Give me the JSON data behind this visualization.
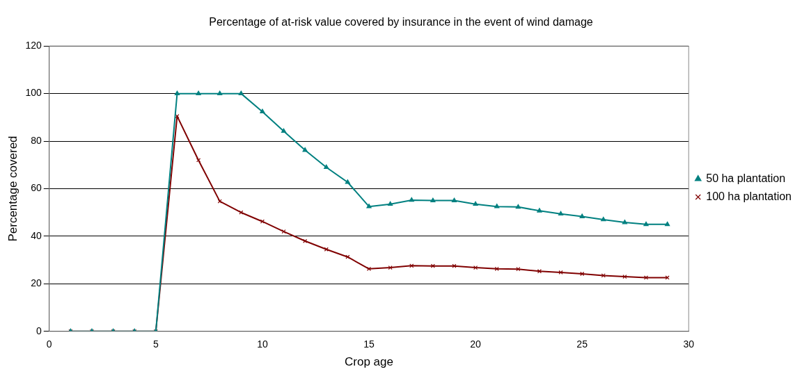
{
  "chart_data": {
    "type": "line",
    "title": "Percentage of at-risk value covered by insurance in the event of wind damage",
    "xlabel": "Crop age",
    "ylabel": "Percentage covered",
    "x": [
      1,
      2,
      3,
      4,
      5,
      6,
      7,
      8,
      9,
      10,
      11,
      12,
      13,
      14,
      15,
      16,
      17,
      18,
      19,
      20,
      21,
      22,
      23,
      24,
      25,
      26,
      27,
      28,
      29
    ],
    "series": [
      {
        "name": "50 ha plantation",
        "color": "#008080",
        "marker": "triangle",
        "values": [
          0,
          0,
          0,
          0,
          0,
          100,
          100,
          100,
          100,
          92.4,
          84.2,
          76.2,
          69,
          62.7,
          52.5,
          53.5,
          55.2,
          55,
          55,
          53.5,
          52.5,
          52.3,
          50.7,
          49.4,
          48.3,
          47,
          45.8,
          45,
          45
        ]
      },
      {
        "name": "100 ha plantation",
        "color": "#800000",
        "marker": "cross",
        "values": [
          0,
          0,
          0,
          0,
          0,
          90.5,
          72,
          54.7,
          50,
          46.2,
          42,
          38,
          34.5,
          31.3,
          26.3,
          26.8,
          27.6,
          27.5,
          27.5,
          26.8,
          26.3,
          26.2,
          25.3,
          24.8,
          24.2,
          23.5,
          23,
          22.6,
          22.6
        ]
      }
    ],
    "xlim": [
      0,
      30
    ],
    "xticks": [
      0,
      5,
      10,
      15,
      20,
      25,
      30
    ],
    "ylim": [
      0,
      120
    ],
    "yticks": [
      0,
      20,
      40,
      60,
      80,
      100,
      120
    ],
    "grid": "y",
    "legend": "right"
  }
}
